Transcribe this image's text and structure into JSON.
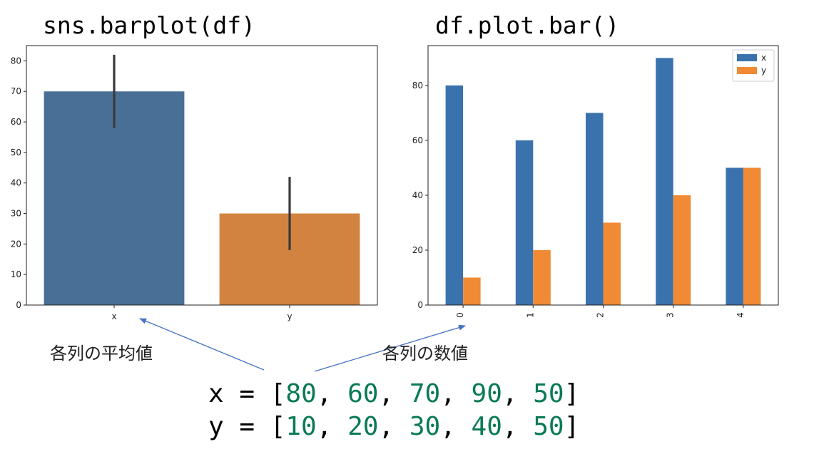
{
  "titles": {
    "left": "sns.barplot(df)",
    "right": "df.plot.bar()"
  },
  "annotations": {
    "left": "各列の平均値",
    "right": "各列の数値"
  },
  "code": {
    "x_prefix": "x = [",
    "x_values": [
      "80",
      "60",
      "70",
      "90",
      "50"
    ],
    "y_prefix": "y = [",
    "y_values": [
      "10",
      "20",
      "30",
      "40",
      "50"
    ],
    "suffix": "]"
  },
  "colors": {
    "sns_blue": "#4a6f96",
    "sns_orange": "#d1833f",
    "mpl_blue": "#3a72ad",
    "mpl_orange": "#f08a34",
    "arrow": "#4472c4"
  },
  "chart_data": [
    {
      "type": "bar",
      "title": "sns.barplot(df)",
      "categories": [
        "x",
        "y"
      ],
      "values": [
        70,
        30
      ],
      "error_bars": [
        [
          58,
          82
        ],
        [
          18,
          42
        ]
      ],
      "ylim": [
        0,
        85
      ],
      "yticks": [
        0,
        10,
        20,
        30,
        40,
        50,
        60,
        70,
        80
      ],
      "xlabel": "",
      "ylabel": ""
    },
    {
      "type": "bar",
      "title": "df.plot.bar()",
      "categories": [
        "0",
        "1",
        "2",
        "3",
        "4"
      ],
      "series": [
        {
          "name": "x",
          "values": [
            80,
            60,
            70,
            90,
            50
          ]
        },
        {
          "name": "y",
          "values": [
            10,
            20,
            30,
            40,
            50
          ]
        }
      ],
      "ylim": [
        0,
        94.5
      ],
      "yticks": [
        0,
        20,
        40,
        60,
        80
      ],
      "legend": "top-right",
      "xlabel": "",
      "ylabel": ""
    }
  ]
}
